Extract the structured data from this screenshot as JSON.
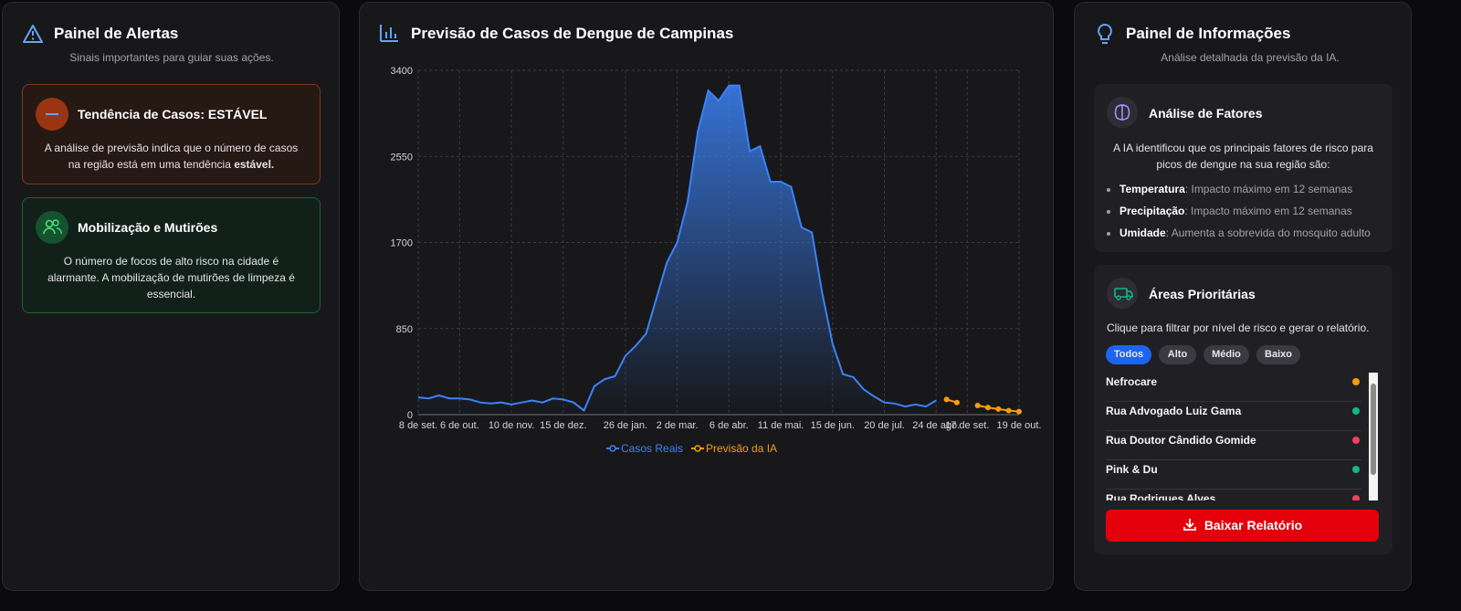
{
  "left_panel": {
    "title": "Painel de Alertas",
    "subtitle": "Sinais importantes para guiar suas ações.",
    "alerts": [
      {
        "title": "Tendência de Casos: ESTÁVEL",
        "text": "A análise de previsão indica que o número de casos na região está em uma tendência ",
        "emphasis": "estável."
      },
      {
        "title": "Mobilização e Mutirões",
        "text": "O número de focos de alto risco na cidade é alarmante. A mobilização de mutirões de limpeza é essencial."
      }
    ]
  },
  "chart_data": {
    "type": "line",
    "title": "Previsão de Casos de Dengue de Campinas",
    "categories": [
      "8 de set.",
      null,
      null,
      null,
      "6 de out.",
      null,
      null,
      null,
      null,
      "10 de nov.",
      null,
      null,
      null,
      null,
      "15 de dez.",
      null,
      null,
      null,
      null,
      null,
      "26 de jan.",
      null,
      null,
      null,
      null,
      "2 de mar.",
      null,
      null,
      null,
      null,
      "6 de abr.",
      null,
      null,
      null,
      null,
      "11 de mai.",
      null,
      null,
      null,
      null,
      "15 de jun.",
      null,
      null,
      null,
      null,
      "20 de jul.",
      null,
      null,
      null,
      null,
      "24 de ago.",
      null,
      null,
      "17 de set.",
      null,
      null,
      null,
      null,
      "19 de out."
    ],
    "series": [
      {
        "name": "Casos Reais",
        "color": "#3b82f6",
        "area": true,
        "values": [
          170,
          160,
          190,
          160,
          160,
          150,
          120,
          110,
          120,
          100,
          120,
          140,
          120,
          160,
          150,
          120,
          40,
          280,
          350,
          380,
          580,
          680,
          800,
          1150,
          1500,
          1700,
          2100,
          2800,
          3200,
          3100,
          3250,
          3250,
          2600,
          2650,
          2300,
          2300,
          2250,
          1850,
          1800,
          1200,
          700,
          400,
          370,
          250,
          180,
          120,
          110,
          80,
          100,
          80,
          140,
          null,
          null,
          null,
          null,
          null,
          null,
          null,
          null
        ]
      },
      {
        "name": "Previsão da IA",
        "color": "#f59e0b",
        "area": false,
        "values": [
          null,
          null,
          null,
          null,
          null,
          null,
          null,
          null,
          null,
          null,
          null,
          null,
          null,
          null,
          null,
          null,
          null,
          null,
          null,
          null,
          null,
          null,
          null,
          null,
          null,
          null,
          null,
          null,
          null,
          null,
          null,
          null,
          null,
          null,
          null,
          null,
          null,
          null,
          null,
          null,
          null,
          null,
          null,
          null,
          null,
          null,
          null,
          null,
          null,
          null,
          null,
          150,
          120,
          null,
          90,
          70,
          55,
          40,
          30
        ]
      }
    ],
    "ylim": [
      0,
      3400
    ],
    "yticks": [
      0,
      850,
      1700,
      2550,
      3400
    ],
    "grid": true
  },
  "right_panel": {
    "title": "Painel de Informações",
    "subtitle": "Análise detalhada da previsão da IA.",
    "factors": {
      "title": "Análise de Fatores",
      "intro": "A IA identificou que os principais fatores de risco para picos de dengue na sua região são:",
      "items": [
        {
          "name": "Temperatura",
          "text": ": Impacto máximo em 12 semanas"
        },
        {
          "name": "Precipitação",
          "text": ": Impacto máximo em 12 semanas"
        },
        {
          "name": "Umidade",
          "text": ": Aumenta a sobrevida do mosquito adulto"
        }
      ]
    },
    "areas": {
      "title": "Áreas Prioritárias",
      "instruction": "Clique para filtrar por nível de risco e gerar o relatório.",
      "filters": [
        "Todos",
        "Alto",
        "Médio",
        "Baixo"
      ],
      "items": [
        {
          "name": "Nefrocare",
          "color": "#f59e0b"
        },
        {
          "name": "Rua Advogado Luiz Gama",
          "color": "#10b981"
        },
        {
          "name": "Rua Doutor Cândido Gomide",
          "color": "#f43f5e"
        },
        {
          "name": "Pink & Du",
          "color": "#10b981"
        },
        {
          "name": "Rua Rodrigues Alves",
          "color": "#f43f5e"
        }
      ]
    },
    "download_button": "Baixar Relatório"
  }
}
